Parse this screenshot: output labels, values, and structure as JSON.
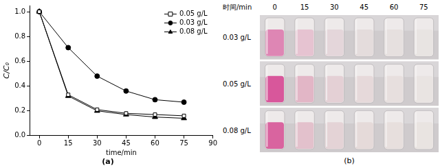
{
  "chart_data": {
    "type": "line",
    "title": "(a)",
    "x_label": "time/min",
    "y_label": "C/C₀",
    "x": [
      0,
      15,
      30,
      45,
      60,
      75
    ],
    "series": [
      {
        "name": "0.05 g/L",
        "color": "#000000",
        "marker": "square_open",
        "values": [
          1.0,
          0.33,
          0.21,
          0.18,
          0.17,
          0.16
        ]
      },
      {
        "name": "0.03 g/L",
        "color": "#000000",
        "marker": "circle",
        "values": [
          1.0,
          0.71,
          0.48,
          0.36,
          0.29,
          0.27
        ]
      },
      {
        "name": "0.08 g/L",
        "color": "#000000",
        "marker": "triangle",
        "values": [
          1.0,
          0.32,
          0.2,
          0.17,
          0.15,
          0.14
        ]
      }
    ],
    "xlim": [
      -5,
      90
    ],
    "xticks": [
      0,
      15,
      30,
      45,
      60,
      75,
      90
    ],
    "ylim": [
      0,
      1.05
    ],
    "yticks": [
      {
        "value": 0,
        "label": "0.0"
      },
      {
        "value": 0.2,
        "label": "0.2"
      },
      {
        "value": 0.4,
        "label": "0.4"
      },
      {
        "value": 0.6,
        "label": "0.6"
      },
      {
        "value": 0.8,
        "label": "0.8"
      },
      {
        "value": 1,
        "label": "1.0"
      }
    ],
    "grid": false,
    "legend": "upper right"
  },
  "panel_b": {
    "label": "(b)",
    "time_header": "时间/min",
    "times": [
      0,
      15,
      30,
      45,
      60,
      75
    ],
    "rows": [
      {
        "label": "0.03 g/L",
        "colors": [
          "#de86b4",
          "#e6c3d1",
          "#e4d6da",
          "#e4dcdc",
          "#e6e0df",
          "#e8e4e2"
        ]
      },
      {
        "label": "0.05 g/L",
        "colors": [
          "#d8579b",
          "#e2b6c6",
          "#e4d0d5",
          "#e6d9da",
          "#e7dfde",
          "#e9e4e2"
        ]
      },
      {
        "label": "0.08 g/L",
        "colors": [
          "#d9649f",
          "#e3c1cc",
          "#e4d3d6",
          "#e5dad9",
          "#e7dfdd",
          "#e9e4e1"
        ]
      }
    ]
  }
}
